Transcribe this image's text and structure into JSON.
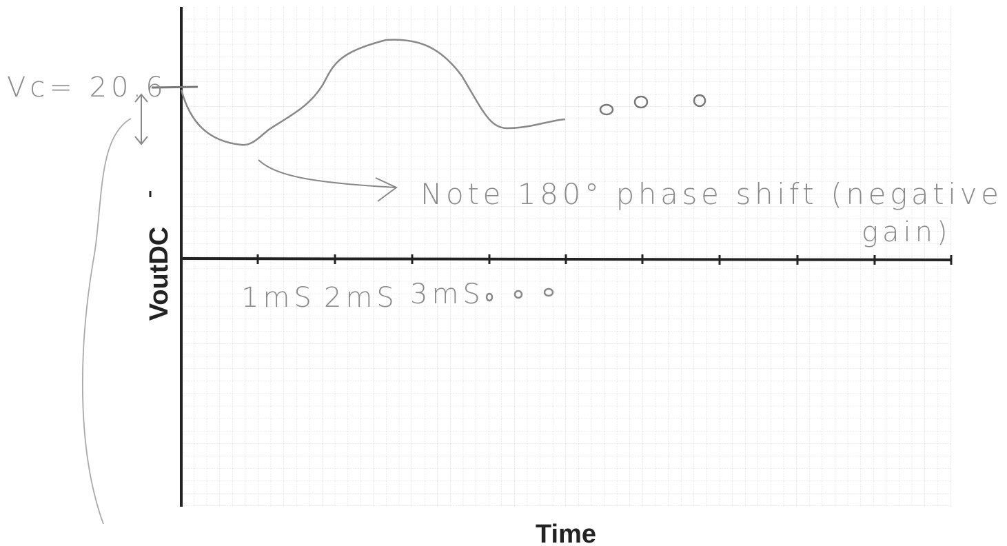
{
  "axes": {
    "y_label": "VoutDC",
    "x_label": "Time"
  },
  "annotations": {
    "vc": "Vc= 20.6",
    "note_lines": [
      "Note 180° phase shift (negative",
      "gain)"
    ]
  },
  "x_tick_labels": [
    "1mS",
    "2mS",
    "3mS"
  ]
}
